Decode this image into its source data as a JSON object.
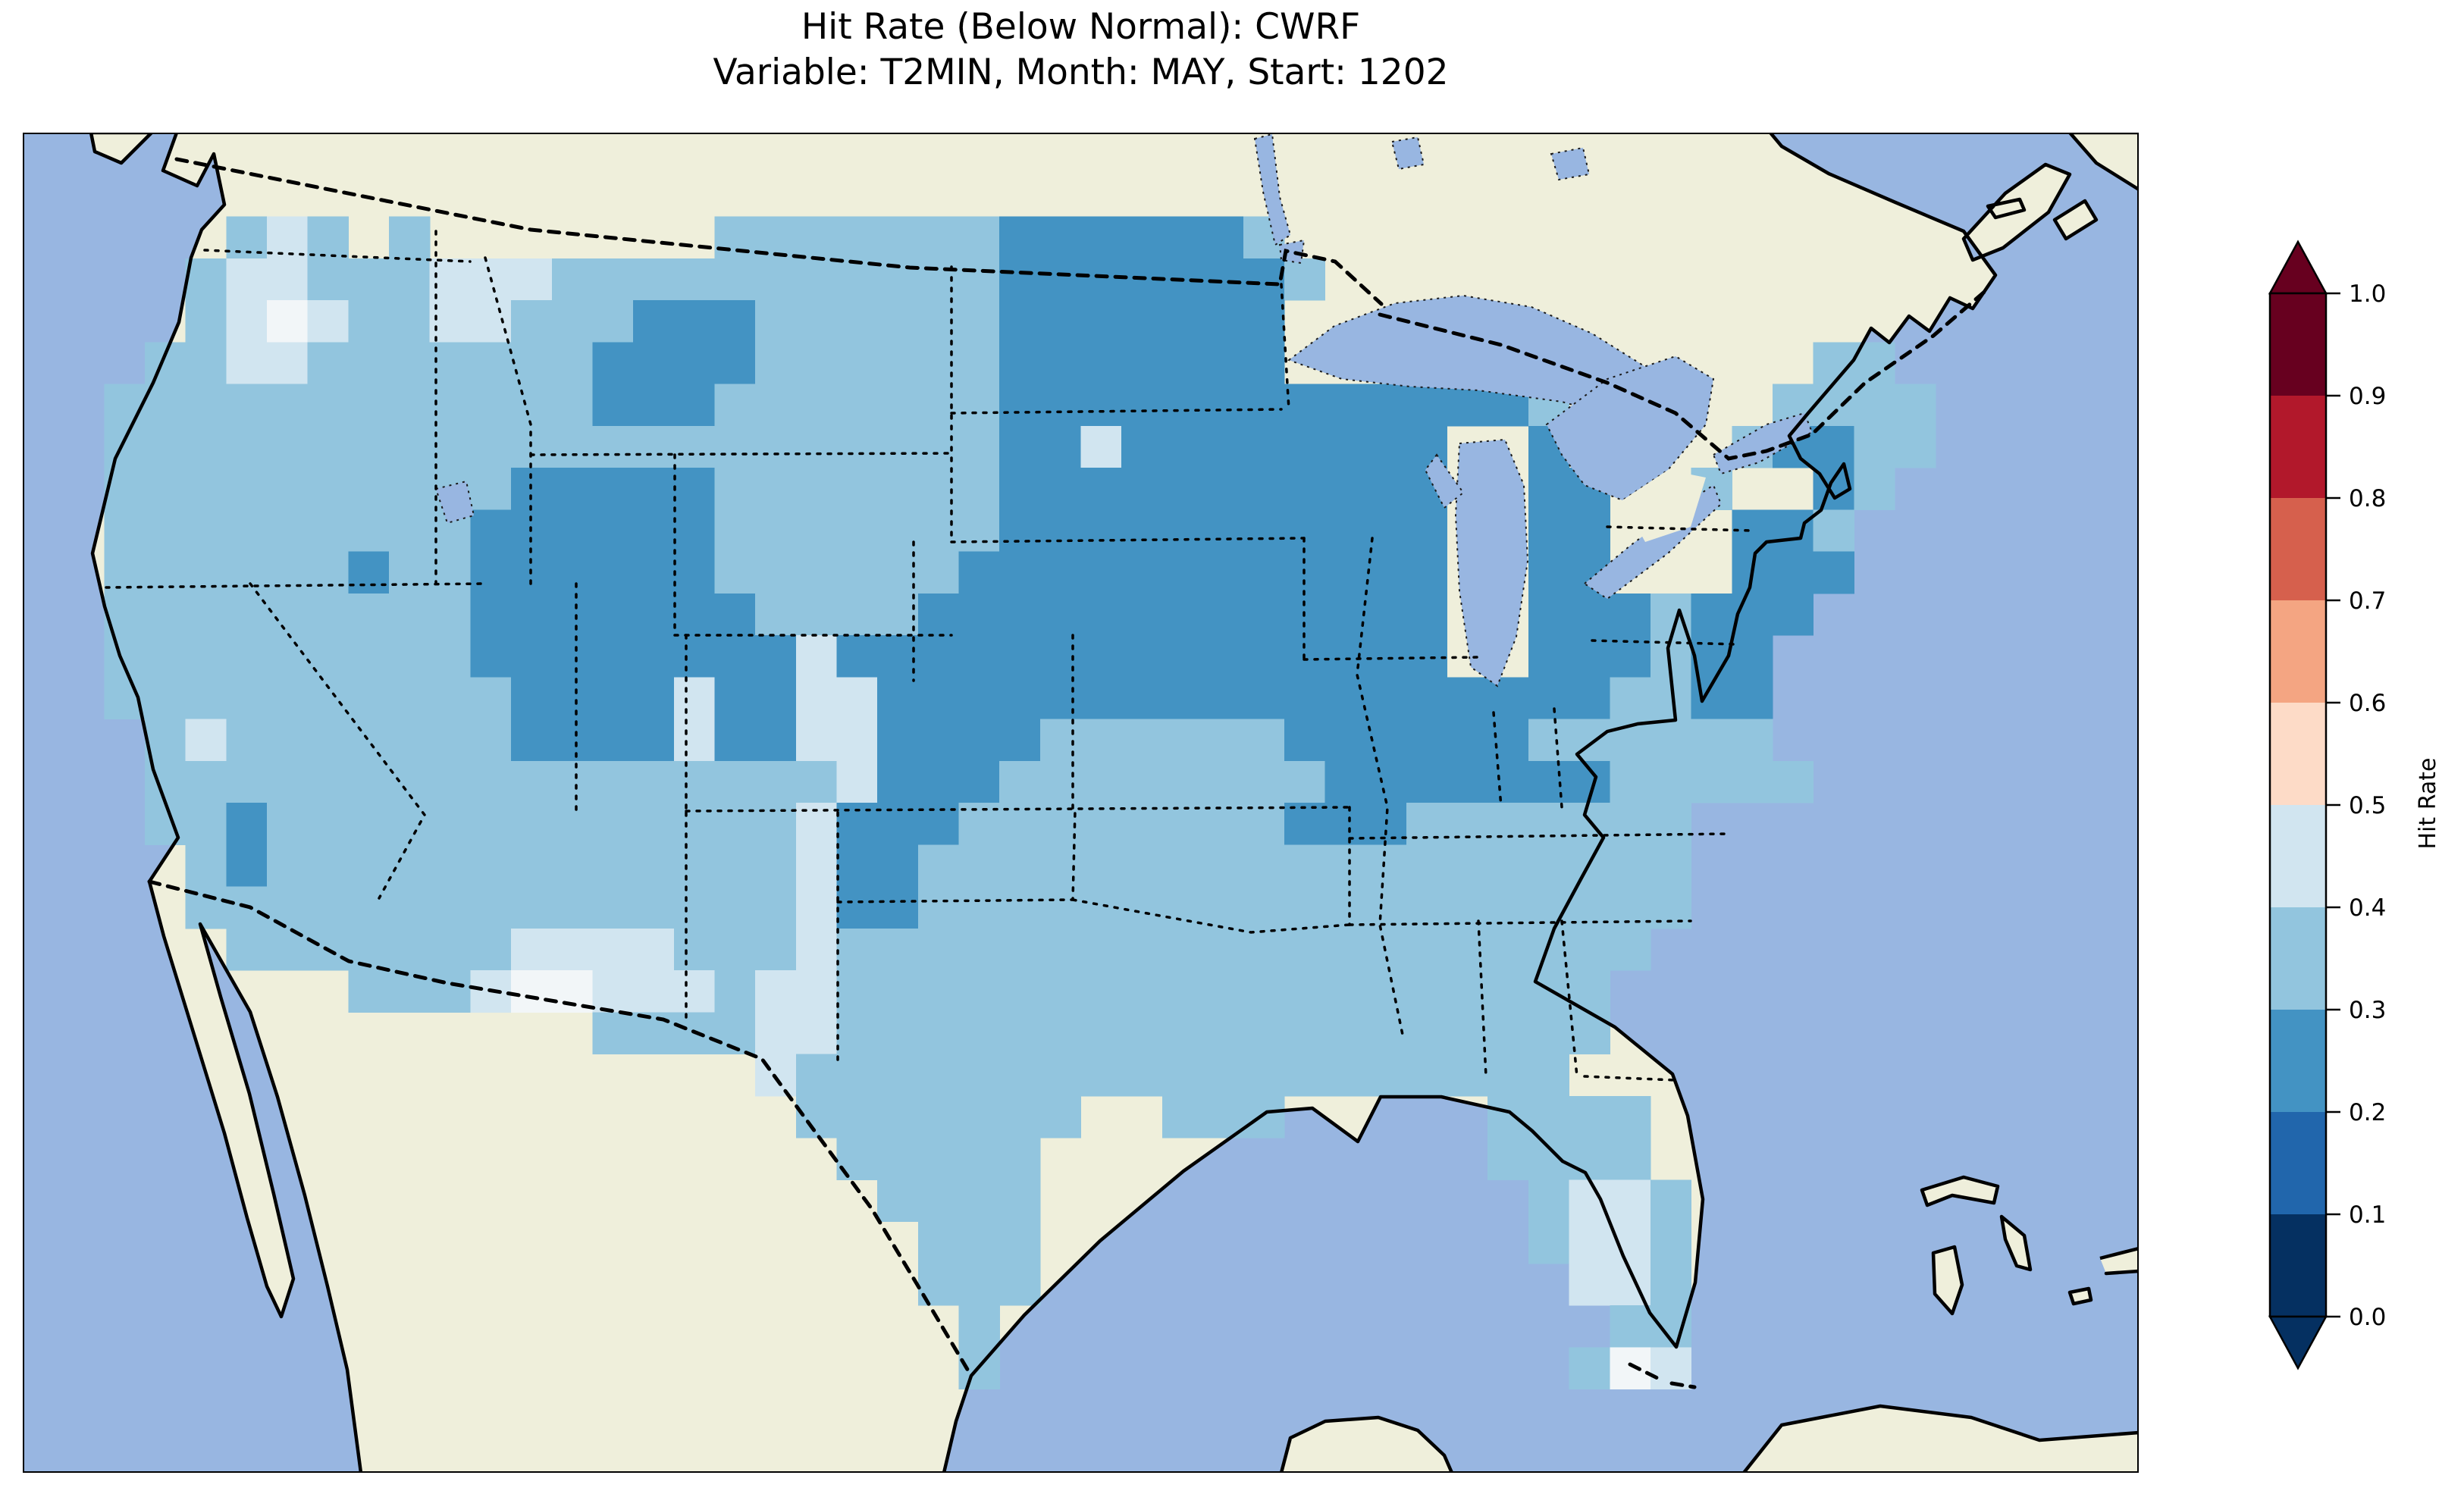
{
  "title": {
    "line1": "Hit Rate (Below Normal): CWRF",
    "line2": "Variable: T2MIN, Month: MAY, Start: 1202"
  },
  "colorbar": {
    "label": "Hit Rate",
    "ticks": [
      "1.0",
      "0.9",
      "0.8",
      "0.7",
      "0.6",
      "0.5",
      "0.4",
      "0.3",
      "0.2",
      "0.1",
      "0.0"
    ],
    "segments": [
      {
        "range": "0.9–1.0",
        "color": "#67001f"
      },
      {
        "range": "0.8–0.9",
        "color": "#b2182b"
      },
      {
        "range": "0.7–0.8",
        "color": "#d6604d"
      },
      {
        "range": "0.6–0.7",
        "color": "#f4a582"
      },
      {
        "range": "0.5–0.6",
        "color": "#fddbc7"
      },
      {
        "range": "0.4–0.5",
        "color": "#d1e5f0"
      },
      {
        "range": "0.3–0.4",
        "color": "#92c5de"
      },
      {
        "range": "0.2–0.3",
        "color": "#4393c3"
      },
      {
        "range": "0.1–0.2",
        "color": "#2166ac"
      },
      {
        "range": "0.0–0.1",
        "color": "#053061"
      }
    ]
  },
  "map": {
    "ocean_color": "#98b6e1",
    "land_color": "#efefdb",
    "lake_color": "#98b6e1",
    "coast_color": "#000000"
  },
  "chart_data": {
    "type": "heatmap",
    "title": "Hit Rate (Below Normal): CWRF",
    "subtitle": "Variable: T2MIN, Month: MAY, Start: 1202",
    "model": "CWRF",
    "variable": "T2MIN",
    "month": "MAY",
    "start": "1202",
    "colorbar_label": "Hit Rate",
    "value_range": [
      0.0,
      1.0
    ],
    "bin_width": 0.1,
    "legend_position": "right",
    "cell_colors": {
      "b": "#92c5de",
      "c": "#4393c3",
      "a": "#d1e5f0",
      "w": "#f2f6f8"
    },
    "cell_values": {
      "b": "0.3–0.4",
      "c": "0.2–0.3",
      "a": "0.4–0.5",
      "w": "0.5"
    },
    "grid_cols": 52,
    "grid_rows_count": 32,
    "grid_rows": [
      "....................................................",
      "....................................................",
      ".....bab.b.......bbbbbbbccccccb.....................",
      "....baabbbaaabbbbbbbbbbbcccccccb....................",
      "....bawabbaabbbcccbbbbbbccccccc.....................",
      "...bbaabbbbbbbccccbbbbbbccccccc.............bb......",
      "..bbbbbbbbbbbbcccbbbbbbbcccccccccccccb.....bbbb.....",
      "..bbbbbbbbbbbbbbbbbbbbbbccacccccccc..c....bccbb.....",
      "..bbbbbbbbbbcccccbbbbbbbccccccccccc..cc..b..cb......",
      "..bbbbbbbbbccccccbbbbbbbccccccccccc..cc...ccb.......",
      "..bbbbbbcbbccccccbbbbbbcccccccccccc..cc...ccc.......",
      "..bbbbbbbbbcccccccbbbbccccccccccccc..cccbccc........",
      "..bbbbbbbbbccccccccaccccccccccccccc..cccbcc.........",
      "..bbbbbbbbbbccccaccaaccccccccccccccccccbbcc.........",
      "...babbbbbbbccccaccaaccccbbbbbbccccccbbbbbb.........",
      "...bbbbbbbbbbbbbbbbbacccbbbbbbbbcccccccbbbbb........",
      "...bbcbbbbbbbbbbbbbacccbbbbbbbbcccbbbbbbb...........",
      "....bcbbbbbbbbbbbbbaccbbbbbbbbbbbbbbbbbbb...........",
      "....bbbbbbbbbbbbbbbaccbbbbbbbbbbbbbbbbbbb...........",
      ".....bbbbbbbaaaabbbabbbbbbbbbbbbbbbbbbbb............",
      "........bbbawwaaabaabbbbbbbbbbbbbbbbbbb.............",
      "..............bbbbaabbbbbbbbbbbbbbbbbbb.............",
      "..................abbbbbbbbbbbbbbbbbbb.............",
      "...................bbbbbbb..bbb.....bbbb............",
      "....................bbbbb...........bbbb............",
      ".....................bbbb............baab...........",
      "......................bbb............baab...........",
      "......................bbb.............aab...........",
      ".......................b...............bb...........",
      ".......................b..............bwa...........",
      "....................................................",
      "...................................................."
    ],
    "regions_summary": [
      {
        "region": "Most of CONUS (West, South, Southeast, Texas, California)",
        "hit_rate": "0.3–0.4"
      },
      {
        "region": "Upper Midwest (MN, WI, MI, IA, IL, IN, W OH) and eastern Dakotas",
        "hit_rate": "0.2–0.3"
      },
      {
        "region": "Central Rockies (UT, WY, CO, N NM) and central Plains (NE, KS, OK/TX panhandles)",
        "hit_rate": "0.2–0.3"
      },
      {
        "region": "NY / PA / NJ / Delmarva and coastal Maine",
        "hit_rate": "0.2–0.3"
      },
      {
        "region": "Eastern Washington, W Montana, S Arizona / SW New Mexico, Big Bend TX, central-south Florida",
        "hit_rate": "0.4–0.5"
      },
      {
        "region": "Scattered cells (E WA, S AZ, Florida Keys)",
        "hit_rate": "~0.5"
      }
    ]
  }
}
